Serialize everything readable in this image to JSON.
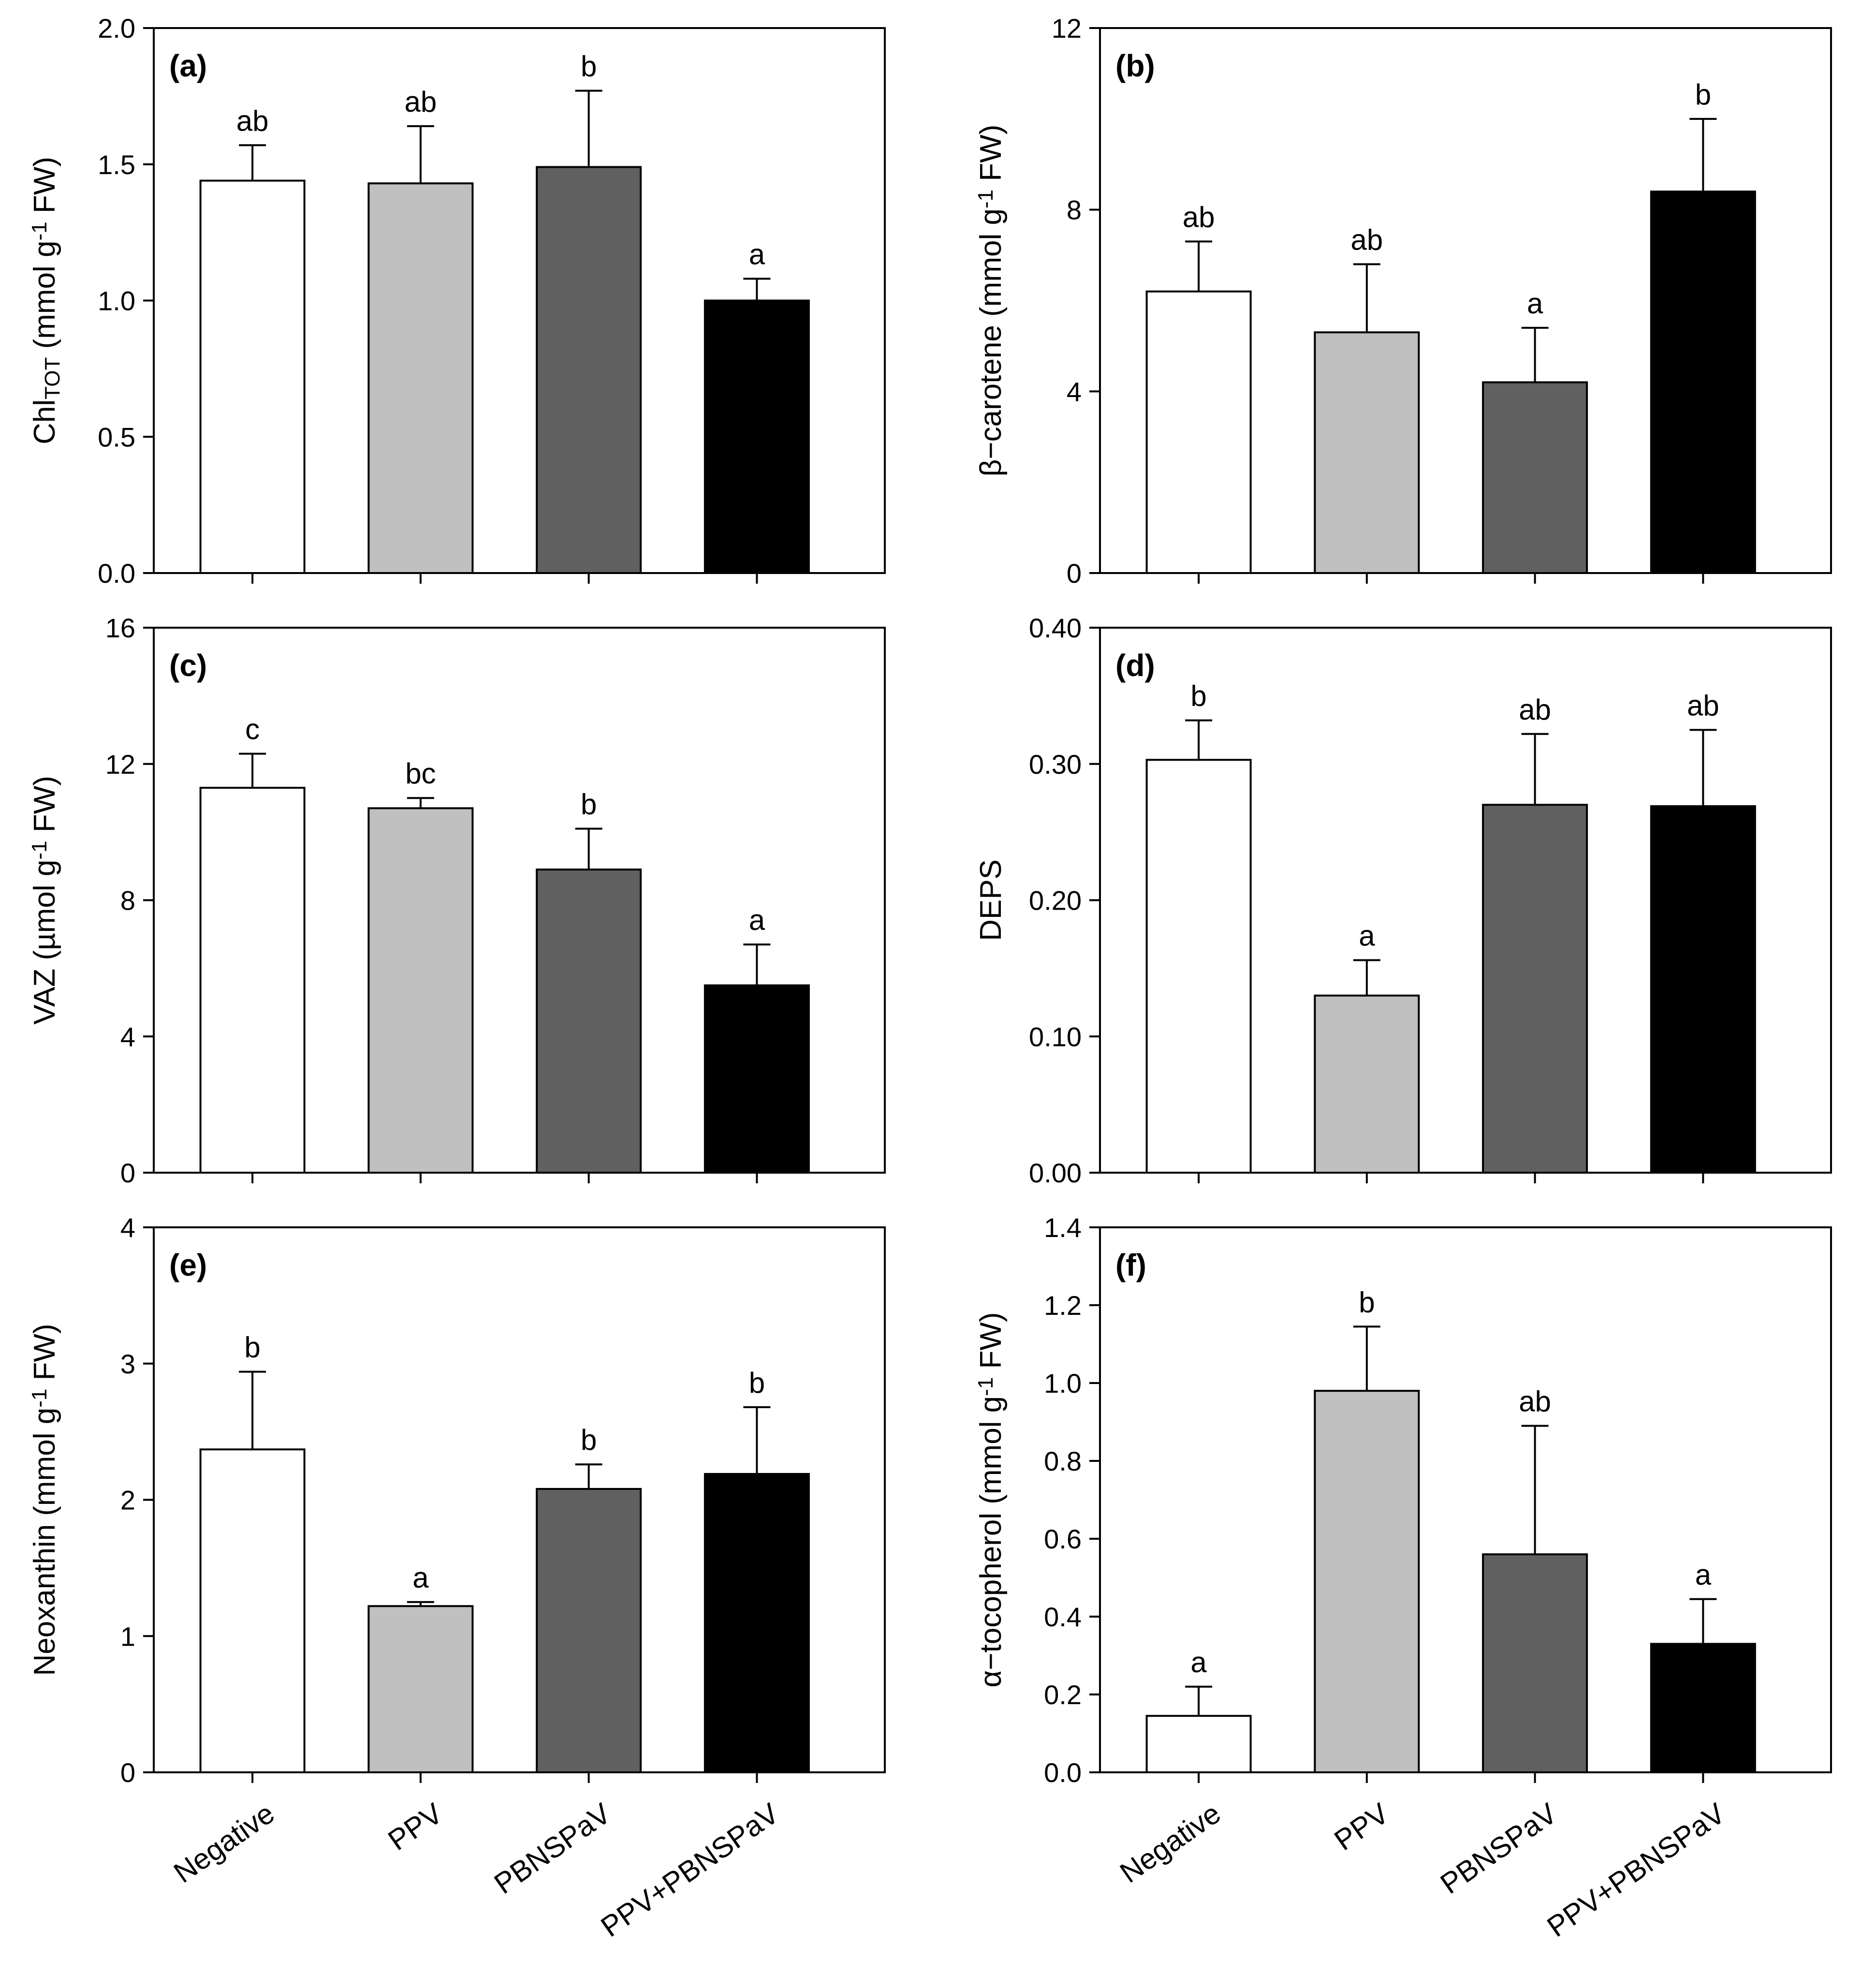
{
  "figure": {
    "categories": [
      "Negative",
      "PPV",
      "PBNSPaV",
      "PPV+PBNSPaV"
    ],
    "bar_colors": [
      "#ffffff",
      "#c0c0c0",
      "#606060",
      "#000000"
    ]
  },
  "chart_data": [
    {
      "type": "bar",
      "panel": "(a)",
      "ylabel_main": "Chl",
      "ylabel_sub": "TOT",
      "ylabel_rest": " (mmol g",
      "ylabel_sup": "-1",
      "ylabel_end": " FW)",
      "categories": [
        "Negative",
        "PPV",
        "PBNSPaV",
        "PPV+PBNSPaV"
      ],
      "values": [
        1.44,
        1.43,
        1.49,
        1.0
      ],
      "errors": [
        0.13,
        0.21,
        0.28,
        0.08
      ],
      "letters": [
        "ab",
        "ab",
        "b",
        "a"
      ],
      "ylim": [
        0,
        2.0
      ],
      "yticks": [
        "0.0",
        "0.5",
        "1.0",
        "1.5",
        "2.0"
      ]
    },
    {
      "type": "bar",
      "panel": "(b)",
      "ylabel_main": "β−carotene",
      "ylabel_sub": "",
      "ylabel_rest": " (mmol g",
      "ylabel_sup": "-1",
      "ylabel_end": " FW)",
      "categories": [
        "Negative",
        "PPV",
        "PBNSPaV",
        "PPV+PBNSPaV"
      ],
      "values": [
        6.2,
        5.3,
        4.2,
        8.4
      ],
      "errors": [
        1.1,
        1.5,
        1.2,
        1.6
      ],
      "letters": [
        "ab",
        "ab",
        "a",
        "b"
      ],
      "ylim": [
        0,
        12
      ],
      "yticks": [
        "0",
        "4",
        "8",
        "12"
      ]
    },
    {
      "type": "bar",
      "panel": "(c)",
      "ylabel_main": "VAZ",
      "ylabel_sub": "",
      "ylabel_rest": " (µmol g",
      "ylabel_sup": "-1",
      "ylabel_end": " FW)",
      "categories": [
        "Negative",
        "PPV",
        "PBNSPaV",
        "PPV+PBNSPaV"
      ],
      "values": [
        11.3,
        10.7,
        8.9,
        5.5
      ],
      "errors": [
        1.0,
        0.3,
        1.2,
        1.2
      ],
      "letters": [
        "c",
        "bc",
        "b",
        "a"
      ],
      "ylim": [
        0,
        16
      ],
      "yticks": [
        "0",
        "4",
        "8",
        "12",
        "16"
      ]
    },
    {
      "type": "bar",
      "panel": "(d)",
      "ylabel_main": "DEPS",
      "ylabel_sub": "",
      "ylabel_rest": "",
      "ylabel_sup": "",
      "ylabel_end": "",
      "categories": [
        "Negative",
        "PPV",
        "PBNSPaV",
        "PPV+PBNSPaV"
      ],
      "values": [
        0.303,
        0.13,
        0.27,
        0.269
      ],
      "errors": [
        0.029,
        0.026,
        0.052,
        0.056
      ],
      "letters": [
        "b",
        "a",
        "ab",
        "ab"
      ],
      "ylim": [
        0,
        0.4
      ],
      "yticks": [
        "0.00",
        "0.10",
        "0.20",
        "0.30",
        "0.40"
      ]
    },
    {
      "type": "bar",
      "panel": "(e)",
      "ylabel_main": "Neoxanthin",
      "ylabel_sub": "",
      "ylabel_rest": " (mmol g",
      "ylabel_sup": "-1",
      "ylabel_end": " FW)",
      "categories": [
        "Negative",
        "PPV",
        "PBNSPaV",
        "PPV+PBNSPaV"
      ],
      "values": [
        2.37,
        1.22,
        2.08,
        2.19
      ],
      "errors": [
        0.57,
        0.03,
        0.18,
        0.49
      ],
      "letters": [
        "b",
        "a",
        "b",
        "b"
      ],
      "ylim": [
        0,
        4
      ],
      "yticks": [
        "0",
        "1",
        "2",
        "3",
        "4"
      ]
    },
    {
      "type": "bar",
      "panel": "(f)",
      "ylabel_main": "α−tocopherol",
      "ylabel_sub": "",
      "ylabel_rest": " (mmol g",
      "ylabel_sup": "-1",
      "ylabel_end": " FW)",
      "categories": [
        "Negative",
        "PPV",
        "PBNSPaV",
        "PPV+PBNSPaV"
      ],
      "values": [
        0.145,
        0.98,
        0.56,
        0.33
      ],
      "errors": [
        0.075,
        0.165,
        0.33,
        0.115
      ],
      "letters": [
        "a",
        "b",
        "ab",
        "a"
      ],
      "ylim": [
        0,
        1.4
      ],
      "yticks": [
        "0.0",
        "0.2",
        "0.4",
        "0.6",
        "0.8",
        "1.0",
        "1.2",
        "1.4"
      ]
    }
  ]
}
